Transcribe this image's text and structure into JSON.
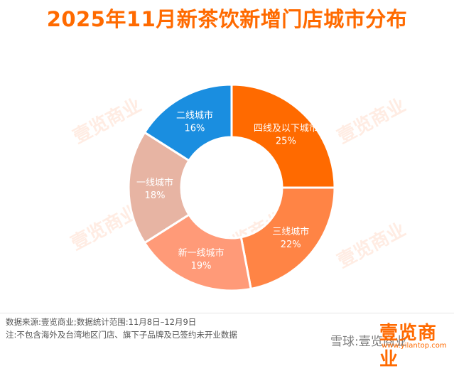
{
  "title": "2025年11月新茶饮新增门店城市分布",
  "chart_data": {
    "type": "pie",
    "title": "2025年11月新茶饮新增门店城市分布",
    "slices": [
      {
        "label": "四线及以下城市",
        "value": 25,
        "display": "25%",
        "color": "#ff6a00"
      },
      {
        "label": "三线城市",
        "value": 22,
        "display": "22%",
        "color": "#ff8445"
      },
      {
        "label": "新一线城市",
        "value": 19,
        "display": "19%",
        "color": "#ff9a78"
      },
      {
        "label": "一线城市",
        "value": 18,
        "display": "18%",
        "color": "#e7b4a3"
      },
      {
        "label": "二线城市",
        "value": 16,
        "display": "16%",
        "color": "#1a8ee0"
      }
    ]
  },
  "footer": {
    "source": "数据来源:壹览商业;数据统计范围:11月8日–12月9日",
    "note": "注:不包含海外及台湾地区门店、旗下子品牌及已签约未开业数据"
  },
  "brand": {
    "name": "壹览商业",
    "xueqiu": "雪球:壹览商业",
    "site": "www.yilantop.com"
  },
  "watermark": "壹览商业"
}
